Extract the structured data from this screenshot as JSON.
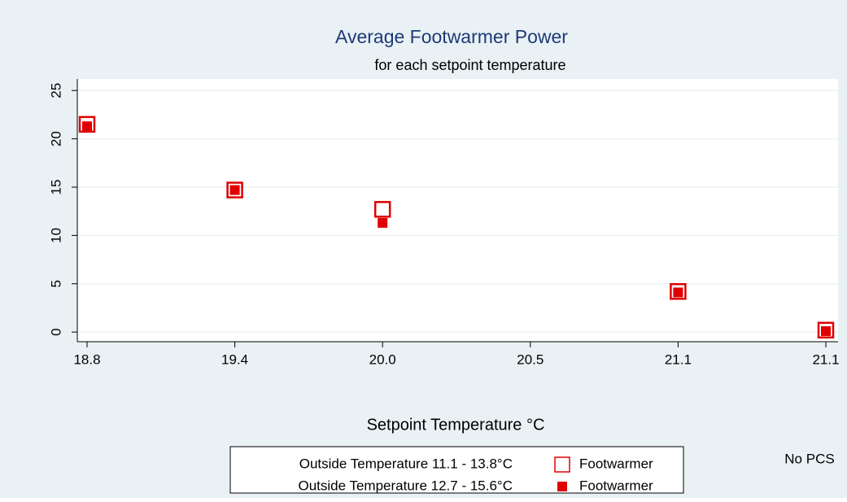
{
  "chart_data": {
    "type": "scatter",
    "title": "Average Footwarmer Power",
    "subtitle": "for each setpoint temperature",
    "x_label": "Setpoint Temperature °C",
    "annotation": "No PCS",
    "categories": [
      "18.8",
      "19.4",
      "20.0",
      "20.5",
      "21.1",
      "21.1"
    ],
    "ylim": [
      -1,
      26.2
    ],
    "yticks": [
      0,
      5,
      10,
      15,
      20,
      25
    ],
    "grid": true,
    "series": [
      {
        "group": "Outside Temperature 11.1 - 13.8°C",
        "name": "Footwarmer",
        "marker": "hollow-square",
        "color": "#e00000",
        "values": [
          21.5,
          14.7,
          12.7,
          null,
          4.2,
          0.2
        ]
      },
      {
        "group": "Outside Temperature 12.7 - 15.6°C",
        "name": "Footwarmer",
        "marker": "filled-square",
        "color": "#e00000",
        "values": [
          21.3,
          14.7,
          11.3,
          null,
          4.1,
          0.1
        ]
      }
    ]
  }
}
